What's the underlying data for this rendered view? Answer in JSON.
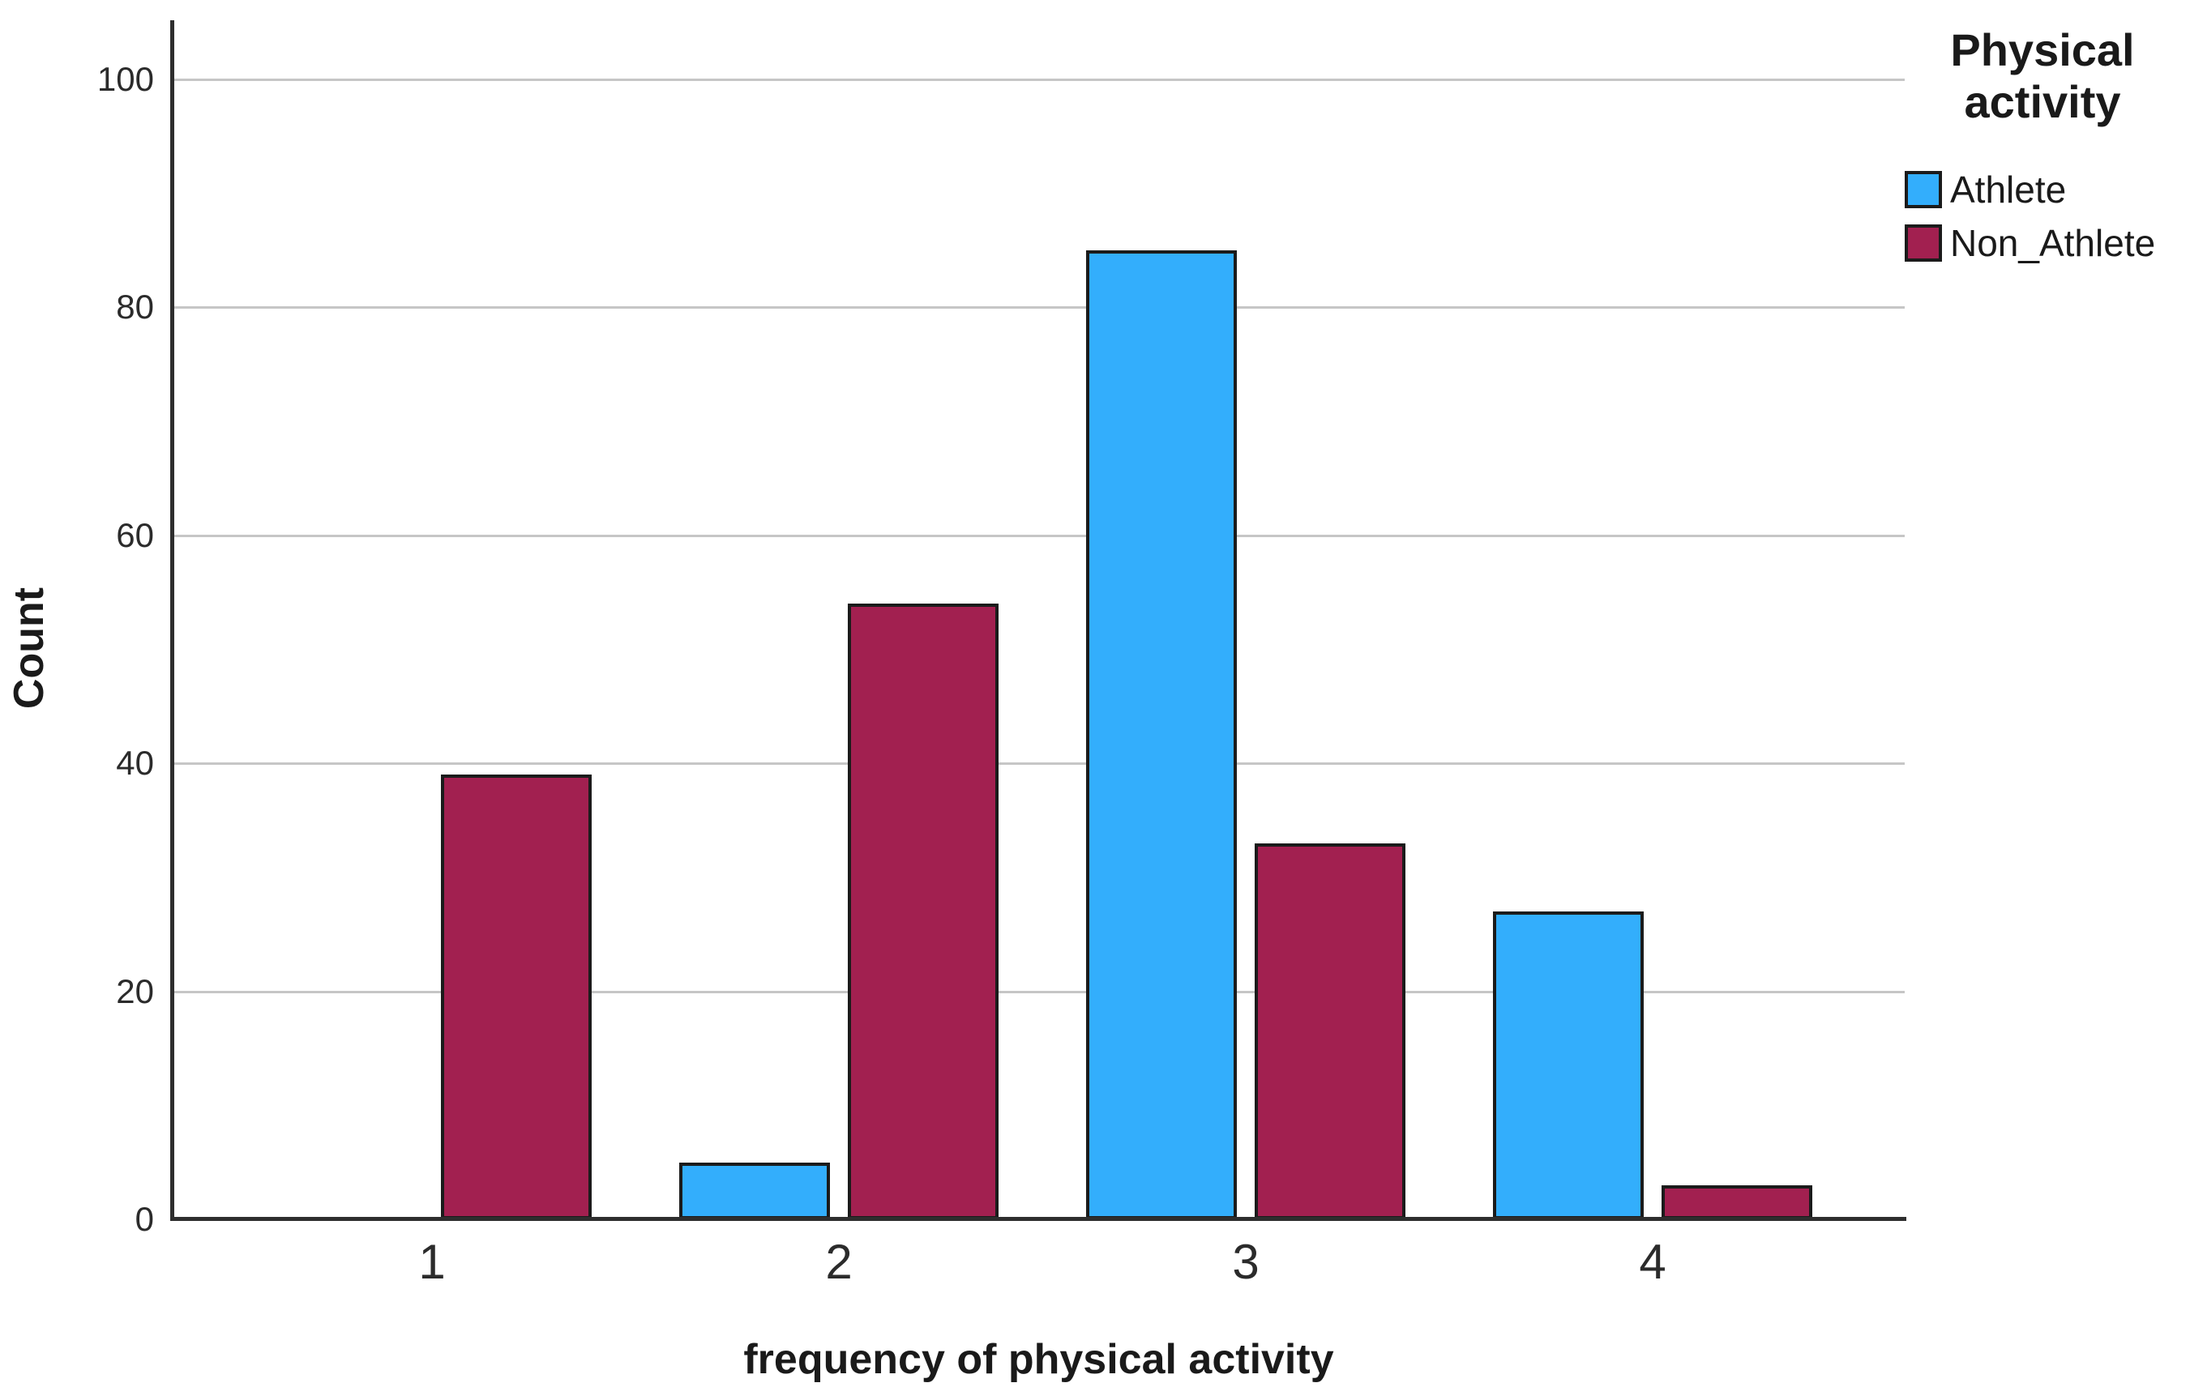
{
  "chart_data": {
    "type": "bar",
    "title": "",
    "xlabel": "frequency of physical activity",
    "ylabel": "Count",
    "categories": [
      "1",
      "2",
      "3",
      "4"
    ],
    "series": [
      {
        "name": "Athlete",
        "color": "#33AEFC",
        "values": [
          0,
          5,
          85,
          27
        ]
      },
      {
        "name": "Non_Athlete",
        "color": "#A22050",
        "values": [
          39,
          54,
          33,
          3
        ]
      }
    ],
    "yticks": [
      0,
      20,
      40,
      60,
      80,
      100
    ],
    "ylim": [
      0,
      105
    ],
    "grid": true,
    "grid_color": "#c6c6c6",
    "legend_position": "top-right",
    "legend_title": "Physical activity"
  },
  "legend": {
    "title_lines": [
      "Physical",
      "activity"
    ],
    "items": [
      {
        "label": "Athlete",
        "color": "#33AEFC"
      },
      {
        "label": "Non_Athlete",
        "color": "#A22050"
      }
    ]
  },
  "axes": {
    "x_title": "frequency of physical activity",
    "y_title": "Count"
  }
}
